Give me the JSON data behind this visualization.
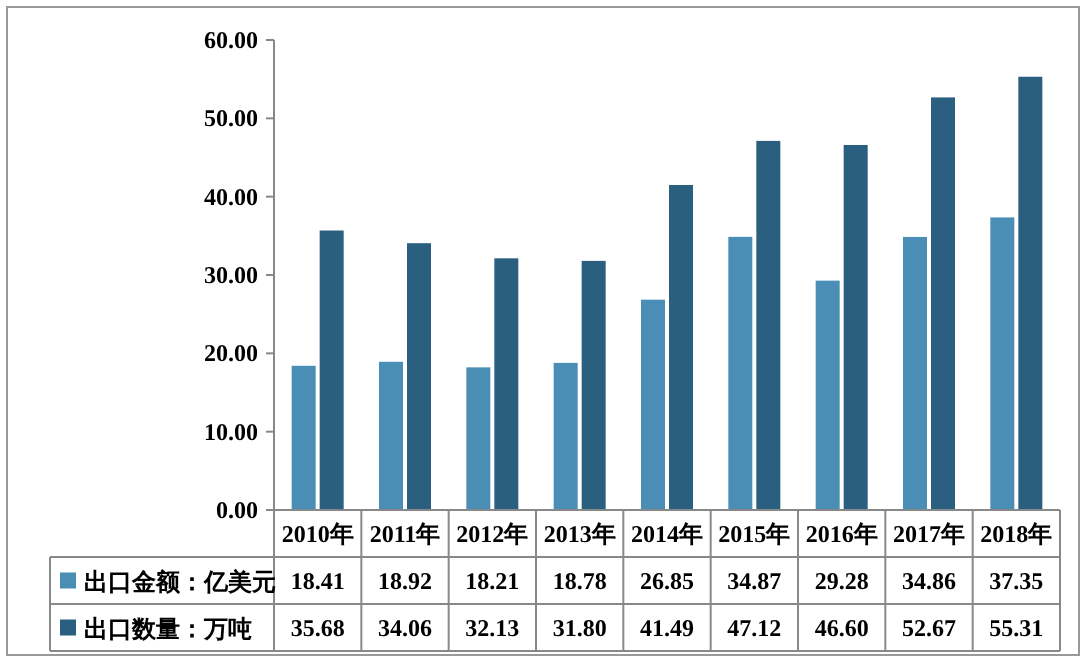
{
  "chart_data": {
    "type": "bar",
    "categories": [
      "2010年",
      "2011年",
      "2012年",
      "2013年",
      "2014年",
      "2015年",
      "2016年",
      "2017年",
      "2018年"
    ],
    "series": [
      {
        "name": "出口金额：亿美元",
        "color": "#4a8db5",
        "values": [
          18.41,
          18.92,
          18.21,
          18.78,
          26.85,
          34.87,
          29.28,
          34.86,
          37.35
        ],
        "value_labels": [
          "18.41",
          "18.92",
          "18.21",
          "18.78",
          "26.85",
          "34.87",
          "29.28",
          "34.86",
          "37.35"
        ]
      },
      {
        "name": "出口数量：万吨",
        "color": "#2b5f80",
        "values": [
          35.68,
          34.06,
          32.13,
          31.8,
          41.49,
          47.12,
          46.6,
          52.67,
          55.31
        ],
        "value_labels": [
          "35.68",
          "34.06",
          "32.13",
          "31.80",
          "41.49",
          "47.12",
          "46.60",
          "52.67",
          "55.31"
        ]
      }
    ],
    "ylim": [
      0,
      60
    ],
    "yticks": [
      {
        "value": 0,
        "label": "0.00"
      },
      {
        "value": 10,
        "label": "10.00"
      },
      {
        "value": 20,
        "label": "20.00"
      },
      {
        "value": 30,
        "label": "30.00"
      },
      {
        "value": 40,
        "label": "40.00"
      },
      {
        "value": 50,
        "label": "50.00"
      },
      {
        "value": 60,
        "label": "60.00"
      }
    ],
    "legend": "bottom",
    "grid": false
  }
}
